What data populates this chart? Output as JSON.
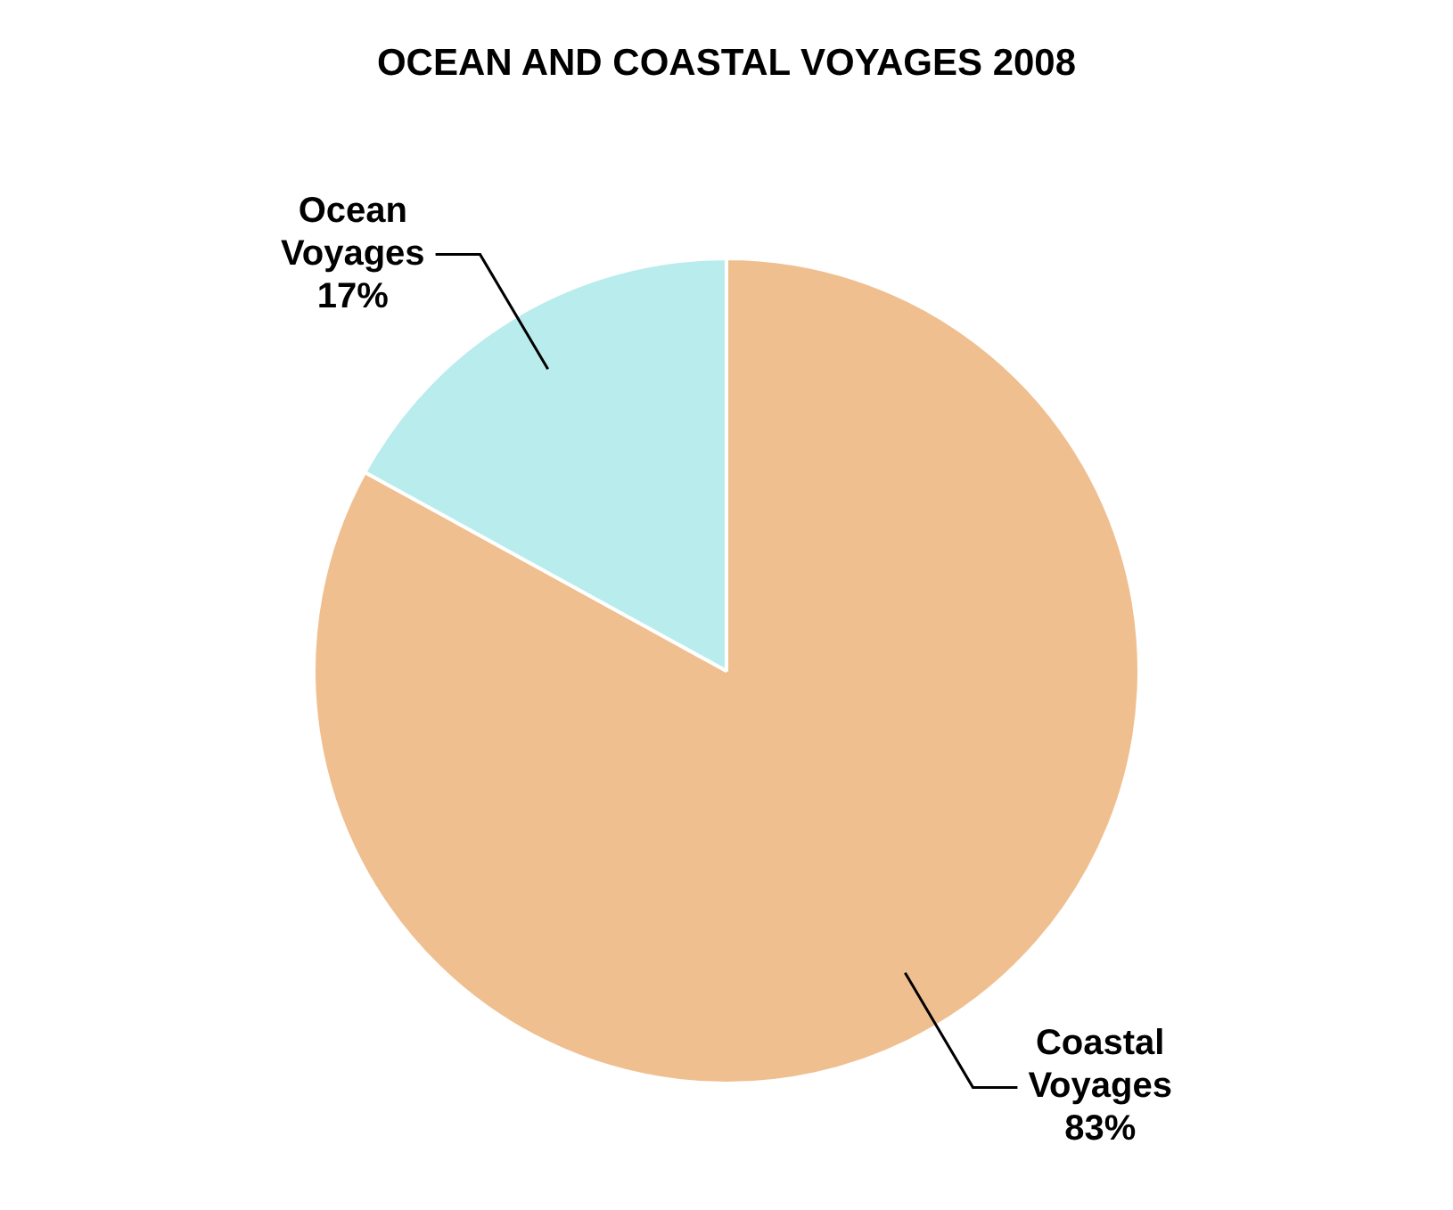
{
  "chart_data": {
    "type": "pie",
    "title": "OCEAN AND COASTAL VOYAGES 2008",
    "categories": [
      "Coastal Voyages",
      "Ocean Voyages"
    ],
    "values": [
      83,
      17
    ],
    "colors": [
      "#f0bf8f",
      "#b9ecec"
    ],
    "value_labels": [
      "83%",
      "17%"
    ],
    "legend": false
  }
}
